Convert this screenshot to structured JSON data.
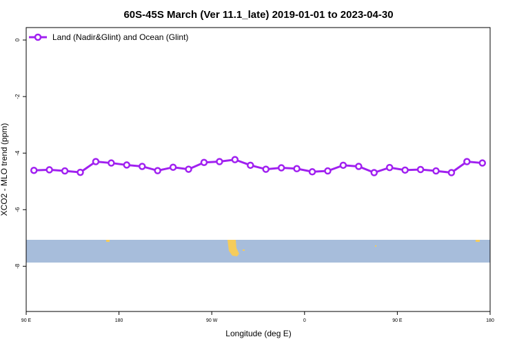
{
  "chart_data": {
    "type": "line",
    "title": "60S-45S March (Ver 11.1_late)   2019-01-01 to 2023-04-30",
    "x_label": "Longitude (deg E)",
    "y_label": "XCO2 - MLO trend (ppm)",
    "x": [
      97.5,
      112.5,
      127.5,
      142.5,
      157.5,
      172.5,
      187.5,
      202.5,
      217.5,
      232.5,
      247.5,
      262.5,
      277.5,
      292.5,
      307.5,
      322.5,
      337.5,
      352.5,
      367.5,
      382.5,
      397.5,
      412.5,
      427.5,
      442.5,
      457.5,
      472.5,
      487.5,
      502.5,
      517.5,
      532.5
    ],
    "series": [
      {
        "name": "Land (Nadir&Glint) and Ocean (Glint)",
        "color": "#a020f0",
        "values": [
          -4.61,
          -4.59,
          -4.63,
          -4.68,
          -4.3,
          -4.35,
          -4.42,
          -4.47,
          -4.62,
          -4.5,
          -4.57,
          -4.33,
          -4.3,
          -4.23,
          -4.43,
          -4.57,
          -4.52,
          -4.55,
          -4.66,
          -4.63,
          -4.43,
          -4.47,
          -4.69,
          -4.51,
          -4.6,
          -4.58,
          -4.63,
          -4.69,
          -4.3,
          -4.35
        ]
      }
    ],
    "xlim": [
      90,
      540
    ],
    "xticks": [
      {
        "value": 90,
        "label": "90 E"
      },
      {
        "value": 180,
        "label": "180"
      },
      {
        "value": 270,
        "label": "90 W"
      },
      {
        "value": 360,
        "label": "0"
      },
      {
        "value": 450,
        "label": "90 E"
      },
      {
        "value": 540,
        "label": "180"
      }
    ],
    "ylim": [
      -9.6,
      0.44
    ],
    "yticks": [
      0,
      -2,
      -4,
      -6,
      -8
    ],
    "legend": "top-left"
  }
}
